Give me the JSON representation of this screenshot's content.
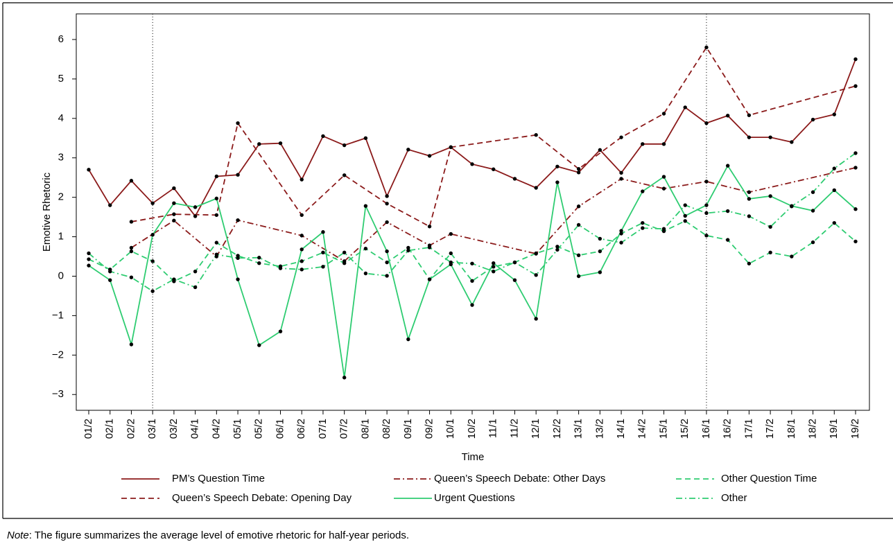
{
  "chart_data": {
    "type": "line",
    "y_label": "Emotive Rhetoric",
    "x_label": "Time",
    "categories": [
      "01/2",
      "02/1",
      "02/2",
      "03/1",
      "03/2",
      "04/1",
      "04/2",
      "05/1",
      "05/2",
      "06/1",
      "06/2",
      "07/1",
      "07/2",
      "08/1",
      "08/2",
      "09/1",
      "09/2",
      "10/1",
      "10/2",
      "11/1",
      "11/2",
      "12/1",
      "12/2",
      "13/1",
      "13/2",
      "14/1",
      "14/2",
      "15/1",
      "15/2",
      "16/1",
      "16/2",
      "17/1",
      "17/2",
      "18/1",
      "18/2",
      "19/1",
      "19/2"
    ],
    "ylim": [
      -3.4,
      6.65
    ],
    "yticks": [
      -3,
      -2,
      -1,
      0,
      1,
      2,
      3,
      4,
      5,
      6
    ],
    "ytick_labels": [
      "−3",
      "−2",
      "−1",
      "0",
      "1",
      "2",
      "3",
      "4",
      "5",
      "6"
    ],
    "vlines": [
      "03/1",
      "16/1"
    ],
    "connect_nulls": true,
    "series": [
      {
        "name": "PM’s Question Time",
        "color": "#8b1a1a",
        "dash": "solid",
        "values": [
          2.7,
          1.8,
          2.42,
          1.85,
          2.23,
          1.52,
          2.53,
          2.57,
          3.35,
          3.37,
          2.45,
          3.55,
          3.32,
          3.5,
          2.03,
          3.21,
          3.05,
          3.27,
          2.84,
          2.71,
          2.47,
          2.24,
          2.78,
          2.63,
          3.2,
          2.62,
          3.35,
          3.35,
          4.28,
          3.88,
          4.07,
          3.52,
          3.52,
          3.4,
          3.97,
          4.1,
          5.5
        ]
      },
      {
        "name": "Queen’s Speech Debate: Opening Day",
        "color": "#8b1a1a",
        "dash": "dashed",
        "values": [
          null,
          null,
          1.38,
          null,
          1.57,
          null,
          1.55,
          3.88,
          null,
          null,
          1.55,
          null,
          2.56,
          null,
          1.84,
          null,
          1.26,
          3.27,
          null,
          null,
          null,
          3.58,
          null,
          2.72,
          null,
          3.52,
          null,
          4.12,
          null,
          5.8,
          null,
          4.08,
          null,
          null,
          null,
          null,
          4.82
        ]
      },
      {
        "name": "Queen’s Speech Debate: Other Days",
        "color": "#8b1a1a",
        "dash": "dashdot",
        "values": [
          null,
          null,
          0.72,
          null,
          1.41,
          null,
          0.5,
          1.42,
          null,
          null,
          1.03,
          null,
          0.38,
          null,
          1.37,
          null,
          0.78,
          1.07,
          null,
          null,
          null,
          0.57,
          null,
          1.77,
          null,
          2.47,
          null,
          2.22,
          null,
          2.4,
          null,
          2.13,
          null,
          null,
          null,
          null,
          2.75
        ]
      },
      {
        "name": "Urgent Questions",
        "color": "#2ecc71",
        "dash": "solid",
        "values": [
          0.27,
          -0.1,
          -1.73,
          1.05,
          1.85,
          1.75,
          1.97,
          -0.08,
          -1.75,
          -1.4,
          0.68,
          1.12,
          -2.57,
          1.78,
          0.63,
          -1.6,
          -0.08,
          0.3,
          -0.73,
          0.33,
          -0.1,
          -1.08,
          2.38,
          0.0,
          0.1,
          1.15,
          2.15,
          2.52,
          1.53,
          1.8,
          2.8,
          1.96,
          2.03,
          1.78,
          1.66,
          2.18,
          1.7
        ]
      },
      {
        "name": "Other Question Time",
        "color": "#2ecc71",
        "dash": "dashed",
        "values": [
          0.43,
          0.17,
          0.63,
          0.38,
          -0.13,
          0.12,
          0.85,
          0.52,
          0.33,
          0.25,
          0.38,
          0.6,
          0.33,
          0.7,
          0.35,
          0.72,
          -0.08,
          0.58,
          -0.12,
          0.24,
          0.35,
          0.58,
          0.75,
          0.53,
          0.63,
          1.08,
          1.35,
          1.14,
          1.4,
          1.03,
          0.92,
          0.32,
          0.6,
          0.5,
          0.86,
          1.35,
          0.88
        ]
      },
      {
        "name": "Other",
        "color": "#2ecc71",
        "dash": "dashdot",
        "values": [
          0.58,
          0.12,
          -0.03,
          -0.38,
          -0.08,
          -0.28,
          0.55,
          0.46,
          0.47,
          0.2,
          0.17,
          0.24,
          0.6,
          0.07,
          0.01,
          0.65,
          0.73,
          0.35,
          0.32,
          0.12,
          0.35,
          0.03,
          0.67,
          1.3,
          0.95,
          0.85,
          1.22,
          1.2,
          1.8,
          1.6,
          1.65,
          1.52,
          1.25,
          1.77,
          2.13,
          2.73,
          3.12
        ]
      }
    ]
  },
  "note": {
    "label": "Note",
    "text": ": The figure summarizes the average level of emotive rhetoric for half-year periods."
  }
}
